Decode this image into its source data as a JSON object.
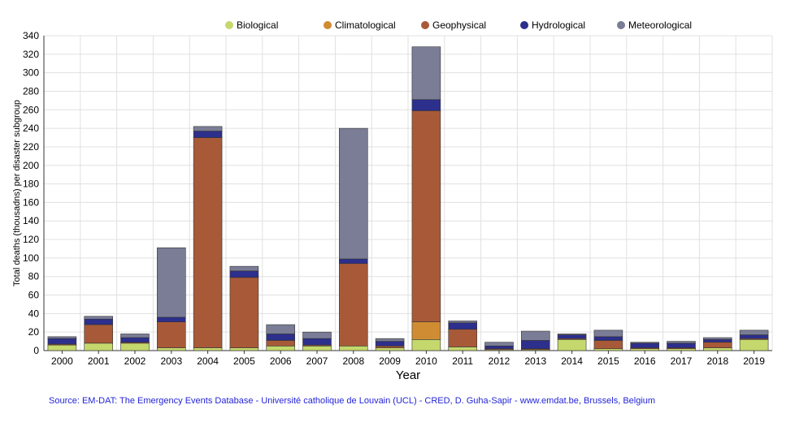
{
  "chart_data": {
    "type": "bar",
    "stacked": true,
    "title": "",
    "xlabel": "Year",
    "ylabel": "Total deaths (thousadns) per  disaster subgroup",
    "ylim": [
      0,
      340
    ],
    "yticks": [
      0,
      20,
      40,
      60,
      80,
      100,
      120,
      140,
      160,
      180,
      200,
      220,
      240,
      260,
      280,
      300,
      320,
      340
    ],
    "grid": true,
    "legend_position": "top",
    "categories": [
      "2000",
      "2001",
      "2002",
      "2003",
      "2004",
      "2005",
      "2006",
      "2007",
      "2008",
      "2009",
      "2010",
      "2011",
      "2012",
      "2013",
      "2014",
      "2015",
      "2016",
      "2017",
      "2018",
      "2019"
    ],
    "series": [
      {
        "name": "Biological",
        "color": "#c5d86d",
        "values": [
          6,
          8,
          8,
          3,
          3,
          3,
          5,
          5,
          5,
          3,
          12,
          4,
          1,
          1,
          12,
          2,
          2,
          2,
          3,
          12
        ]
      },
      {
        "name": "Climatological",
        "color": "#d08c32",
        "values": [
          0,
          0,
          0,
          0,
          0,
          0,
          0,
          0,
          0,
          0,
          19,
          0,
          0,
          0,
          0,
          0,
          0,
          0,
          0,
          0
        ]
      },
      {
        "name": "Geophysical",
        "color": "#a85a38",
        "values": [
          1,
          20,
          1,
          28,
          227,
          76,
          6,
          1,
          89,
          2,
          228,
          19,
          1,
          1,
          1,
          9,
          1,
          1,
          6,
          1
        ]
      },
      {
        "name": "Hydrological",
        "color": "#2c2f8c",
        "values": [
          6,
          6,
          5,
          5,
          7,
          7,
          7,
          7,
          5,
          5,
          12,
          7,
          3,
          9,
          4,
          4,
          5,
          5,
          3,
          4
        ]
      },
      {
        "name": "Meteorological",
        "color": "#7a7d95",
        "values": [
          2,
          3,
          4,
          75,
          5,
          5,
          10,
          7,
          141,
          3,
          57,
          2,
          4,
          10,
          1,
          7,
          1,
          2,
          2,
          5
        ]
      }
    ]
  },
  "source_note": "Source: EM-DAT: The Emergency Events Database - Université catholique de Louvain (UCL) - CRED, D. Guha-Sapir - www.emdat.be, Brussels, Belgium"
}
